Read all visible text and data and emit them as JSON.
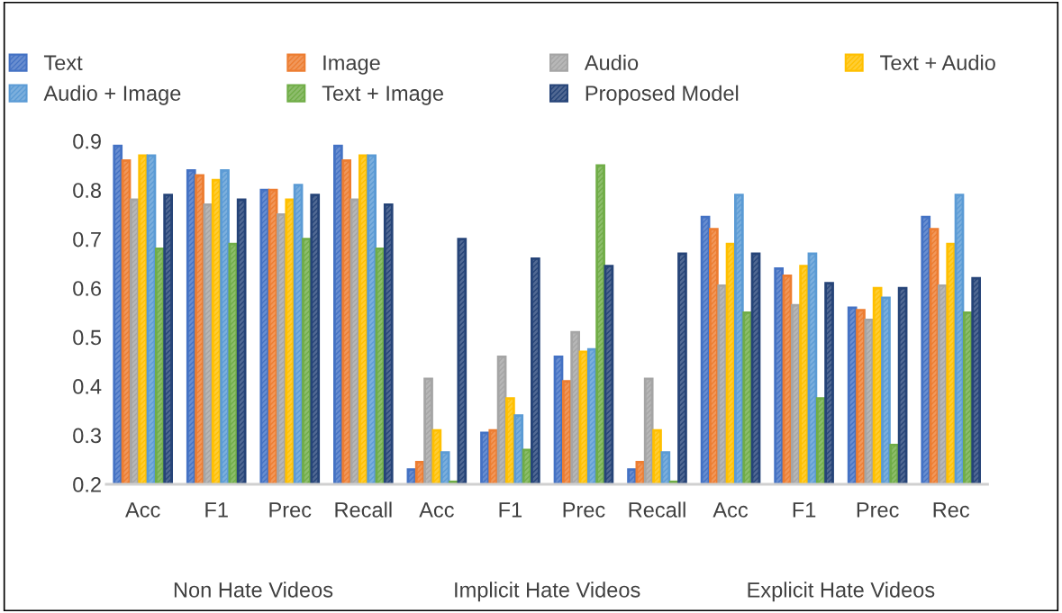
{
  "chart_data": {
    "type": "bar",
    "categories": [
      "Acc",
      "F1",
      "Prec",
      "Recall",
      "Acc",
      "F1",
      "Prec",
      "Recall",
      "Acc",
      "F1",
      "Prec",
      "Rec"
    ],
    "series": [
      {
        "name": "Text",
        "color": "#4472c4",
        "values": [
          0.89,
          0.84,
          0.8,
          0.89,
          0.23,
          0.305,
          0.46,
          0.23,
          0.745,
          0.64,
          0.56,
          0.745
        ]
      },
      {
        "name": "Image",
        "color": "#ed7d31",
        "values": [
          0.86,
          0.83,
          0.8,
          0.86,
          0.245,
          0.31,
          0.41,
          0.245,
          0.72,
          0.625,
          0.555,
          0.72
        ]
      },
      {
        "name": "Audio",
        "color": "#a5a5a5",
        "values": [
          0.78,
          0.77,
          0.75,
          0.78,
          0.415,
          0.46,
          0.51,
          0.415,
          0.605,
          0.565,
          0.535,
          0.605
        ]
      },
      {
        "name": "Text + Audio",
        "color": "#ffc000",
        "values": [
          0.87,
          0.82,
          0.78,
          0.87,
          0.31,
          0.375,
          0.47,
          0.31,
          0.69,
          0.645,
          0.6,
          0.69
        ]
      },
      {
        "name": "Audio + Image",
        "color": "#5b9bd5",
        "values": [
          0.87,
          0.84,
          0.81,
          0.87,
          0.265,
          0.34,
          0.475,
          0.265,
          0.79,
          0.67,
          0.58,
          0.79
        ]
      },
      {
        "name": "Text + Image",
        "color": "#70ad47",
        "values": [
          0.68,
          0.69,
          0.7,
          0.68,
          0.205,
          0.27,
          0.85,
          0.205,
          0.55,
          0.375,
          0.28,
          0.55
        ]
      },
      {
        "name": "Proposed Model",
        "color": "#264478",
        "values": [
          0.79,
          0.78,
          0.79,
          0.77,
          0.7,
          0.66,
          0.645,
          0.67,
          0.67,
          0.61,
          0.6,
          0.62
        ]
      }
    ],
    "ylim": [
      0.2,
      0.9
    ],
    "yticks": [
      0.2,
      0.3,
      0.4,
      0.5,
      0.6,
      0.7,
      0.8,
      0.9
    ],
    "annotations": [
      "Non Hate Videos",
      "Implicit Hate Videos",
      "Explicit Hate Videos"
    ],
    "legend": "top",
    "grid": false
  }
}
